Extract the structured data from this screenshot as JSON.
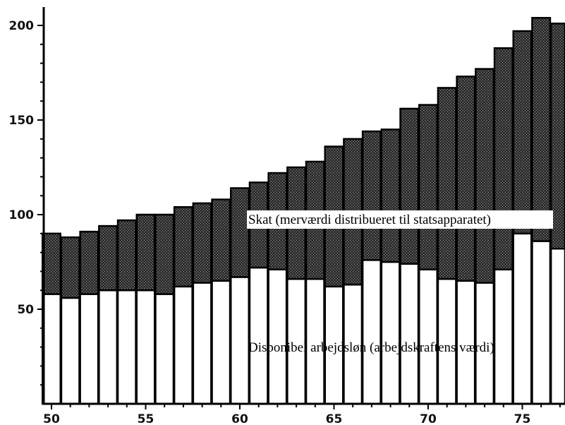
{
  "chart_data": {
    "type": "bar",
    "stacked": true,
    "x": [
      50,
      51,
      52,
      53,
      54,
      55,
      56,
      57,
      58,
      59,
      60,
      61,
      62,
      63,
      64,
      65,
      66,
      67,
      68,
      69,
      70,
      71,
      72,
      73,
      74,
      75,
      76,
      77
    ],
    "series": [
      {
        "name": "Disponibel arbejdsløn (arbejdskraftens værdi)",
        "color": "#ffffff",
        "values": [
          58,
          56,
          58,
          60,
          60,
          60,
          58,
          62,
          64,
          65,
          67,
          72,
          71,
          66,
          66,
          62,
          63,
          76,
          75,
          74,
          71,
          66,
          65,
          64,
          71,
          90,
          86,
          82
        ]
      },
      {
        "name": "Skat (merværdi distribueret til statsapparatet)",
        "color": "#3a3a3a",
        "values": [
          32,
          32,
          33,
          34,
          37,
          40,
          42,
          42,
          42,
          43,
          47,
          45,
          51,
          59,
          62,
          74,
          77,
          68,
          70,
          82,
          87,
          101,
          108,
          113,
          117,
          107,
          118,
          119
        ]
      }
    ],
    "y_ticks": [
      50,
      100,
      150,
      200
    ],
    "x_ticks": [
      50,
      55,
      60,
      65,
      70,
      75
    ],
    "ylim": [
      0,
      210
    ],
    "xlim": [
      50,
      77
    ],
    "grid": false
  },
  "annotations": {
    "tax_label": "Skat (merværdi distribueret til statsapparatet)",
    "wage_label": "Disponibel arbejdsløn (arbejdskraftens værdi)"
  },
  "colors": {
    "wage_fill": "#ffffff",
    "tax_fill": "#3a3a3a",
    "axis": "#000000"
  }
}
